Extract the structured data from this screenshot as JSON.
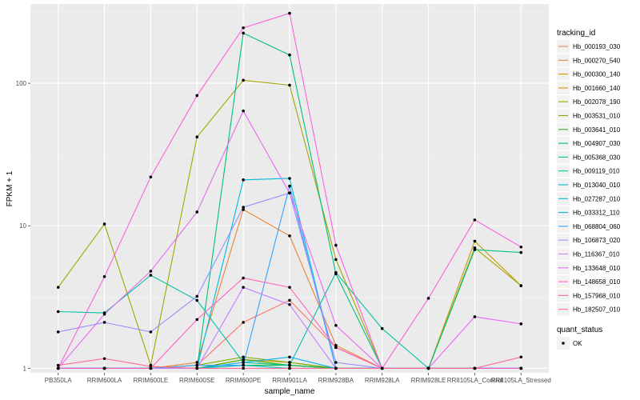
{
  "chart_data": {
    "type": "line",
    "xlabel": "sample_name",
    "ylabel": "FPKM + 1",
    "yscale": "log10",
    "ylim": [
      0.93,
      360
    ],
    "yticks": [
      1,
      10,
      100
    ],
    "ytick_labels": [
      "1",
      "10",
      "100"
    ],
    "grid": true,
    "legend_position": "right",
    "categories": [
      "PB350LA",
      "RRIM600LA",
      "RRIM600LE",
      "RRIM600SE",
      "RRIM600PE",
      "RRIM901LA",
      "RRIM928BA",
      "RRIM928LA",
      "RRIM928LE",
      "RRII105LA_Control",
      "RRII105LA_Stressed"
    ],
    "legend_title": "tracking_id",
    "series": [
      {
        "name": "Hb_000193_030",
        "color": "#F8766D",
        "values": [
          1,
          1,
          1,
          1.05,
          2.1,
          3.0,
          1.4,
          1,
          1,
          1,
          1
        ]
      },
      {
        "name": "Hb_000270_540",
        "color": "#EA8331",
        "values": [
          1,
          1,
          1,
          1.1,
          13.0,
          8.5,
          1.45,
          1,
          1,
          1,
          1
        ]
      },
      {
        "name": "Hb_000300_140",
        "color": "#D89000",
        "values": [
          1,
          1,
          1,
          1,
          1.15,
          1.1,
          1,
          1,
          1,
          1,
          1
        ]
      },
      {
        "name": "Hb_001660_140",
        "color": "#C09B00",
        "values": [
          1,
          1,
          1,
          1,
          1.1,
          1.05,
          1,
          1,
          1,
          7.8,
          3.8
        ]
      },
      {
        "name": "Hb_002078_190",
        "color": "#A3A500",
        "values": [
          3.7,
          10.3,
          1.05,
          42,
          105,
          97,
          5.8,
          1,
          1,
          7.0,
          3.8
        ]
      },
      {
        "name": "Hb_003531_010",
        "color": "#7CAE00",
        "values": [
          1,
          1,
          1,
          1.05,
          1.2,
          1.1,
          1,
          1,
          1,
          1,
          1
        ]
      },
      {
        "name": "Hb_003641_010",
        "color": "#39B600",
        "values": [
          1,
          1,
          1,
          1,
          1.15,
          1.05,
          1,
          1,
          1,
          1,
          1
        ]
      },
      {
        "name": "Hb_004907_030",
        "color": "#00BB4E",
        "values": [
          1,
          1,
          1,
          1,
          1.05,
          1.05,
          1,
          1,
          1,
          1,
          1
        ]
      },
      {
        "name": "Hb_005368_030",
        "color": "#00BF7D",
        "values": [
          1,
          1,
          1,
          1,
          225,
          158,
          4.6,
          1,
          1,
          6.8,
          6.5
        ]
      },
      {
        "name": "Hb_009119_010",
        "color": "#00C1A3",
        "values": [
          2.5,
          2.45,
          4.5,
          3.0,
          1.1,
          1.05,
          4.7,
          1.9,
          1,
          1,
          1
        ]
      },
      {
        "name": "Hb_013040_010",
        "color": "#00BFC4",
        "values": [
          1,
          1,
          1,
          1,
          1.05,
          1.0,
          1,
          1,
          1,
          1,
          1
        ]
      },
      {
        "name": "Hb_027287_010",
        "color": "#00BAE0",
        "values": [
          1,
          1,
          1,
          1,
          21,
          21.5,
          1,
          1,
          1,
          1,
          1
        ]
      },
      {
        "name": "Hb_033312_110",
        "color": "#00B0F6",
        "values": [
          1,
          1,
          1,
          1,
          1.1,
          1.2,
          1,
          1,
          1,
          1,
          1
        ]
      },
      {
        "name": "Hb_068804_060",
        "color": "#35A2FF",
        "values": [
          1,
          1,
          1,
          1.05,
          1.05,
          19.0,
          1,
          1,
          1,
          1,
          1
        ]
      },
      {
        "name": "Hb_106873_020",
        "color": "#9590FF",
        "values": [
          1.8,
          2.1,
          1.8,
          3.2,
          13.5,
          17,
          1.1,
          1,
          1,
          1,
          1
        ]
      },
      {
        "name": "Hb_116367_010",
        "color": "#C77CFF",
        "values": [
          1,
          1,
          1,
          1,
          3.7,
          2.8,
          1,
          1,
          1,
          1,
          1
        ]
      },
      {
        "name": "Hb_133648_010",
        "color": "#E76BF3",
        "values": [
          1,
          2.4,
          4.8,
          12.5,
          64,
          17,
          2.0,
          1,
          1,
          2.3,
          2.05
        ]
      },
      {
        "name": "Hb_148658_010",
        "color": "#FA62DB",
        "values": [
          1,
          4.4,
          22,
          82,
          245,
          310,
          7.3,
          1,
          3.1,
          11.0,
          7.1
        ]
      },
      {
        "name": "Hb_157968_010",
        "color": "#FF62BC",
        "values": [
          1,
          1,
          1,
          2.2,
          4.3,
          3.7,
          1.4,
          1,
          1,
          1,
          1
        ]
      },
      {
        "name": "Hb_182507_010",
        "color": "#FF6C91",
        "values": [
          1.05,
          1.17,
          1.03,
          1.0,
          1.0,
          1.0,
          1.0,
          1,
          1,
          1,
          1.2
        ]
      }
    ],
    "legend2_title": "quant_status",
    "legend2_entries": [
      "OK"
    ]
  }
}
